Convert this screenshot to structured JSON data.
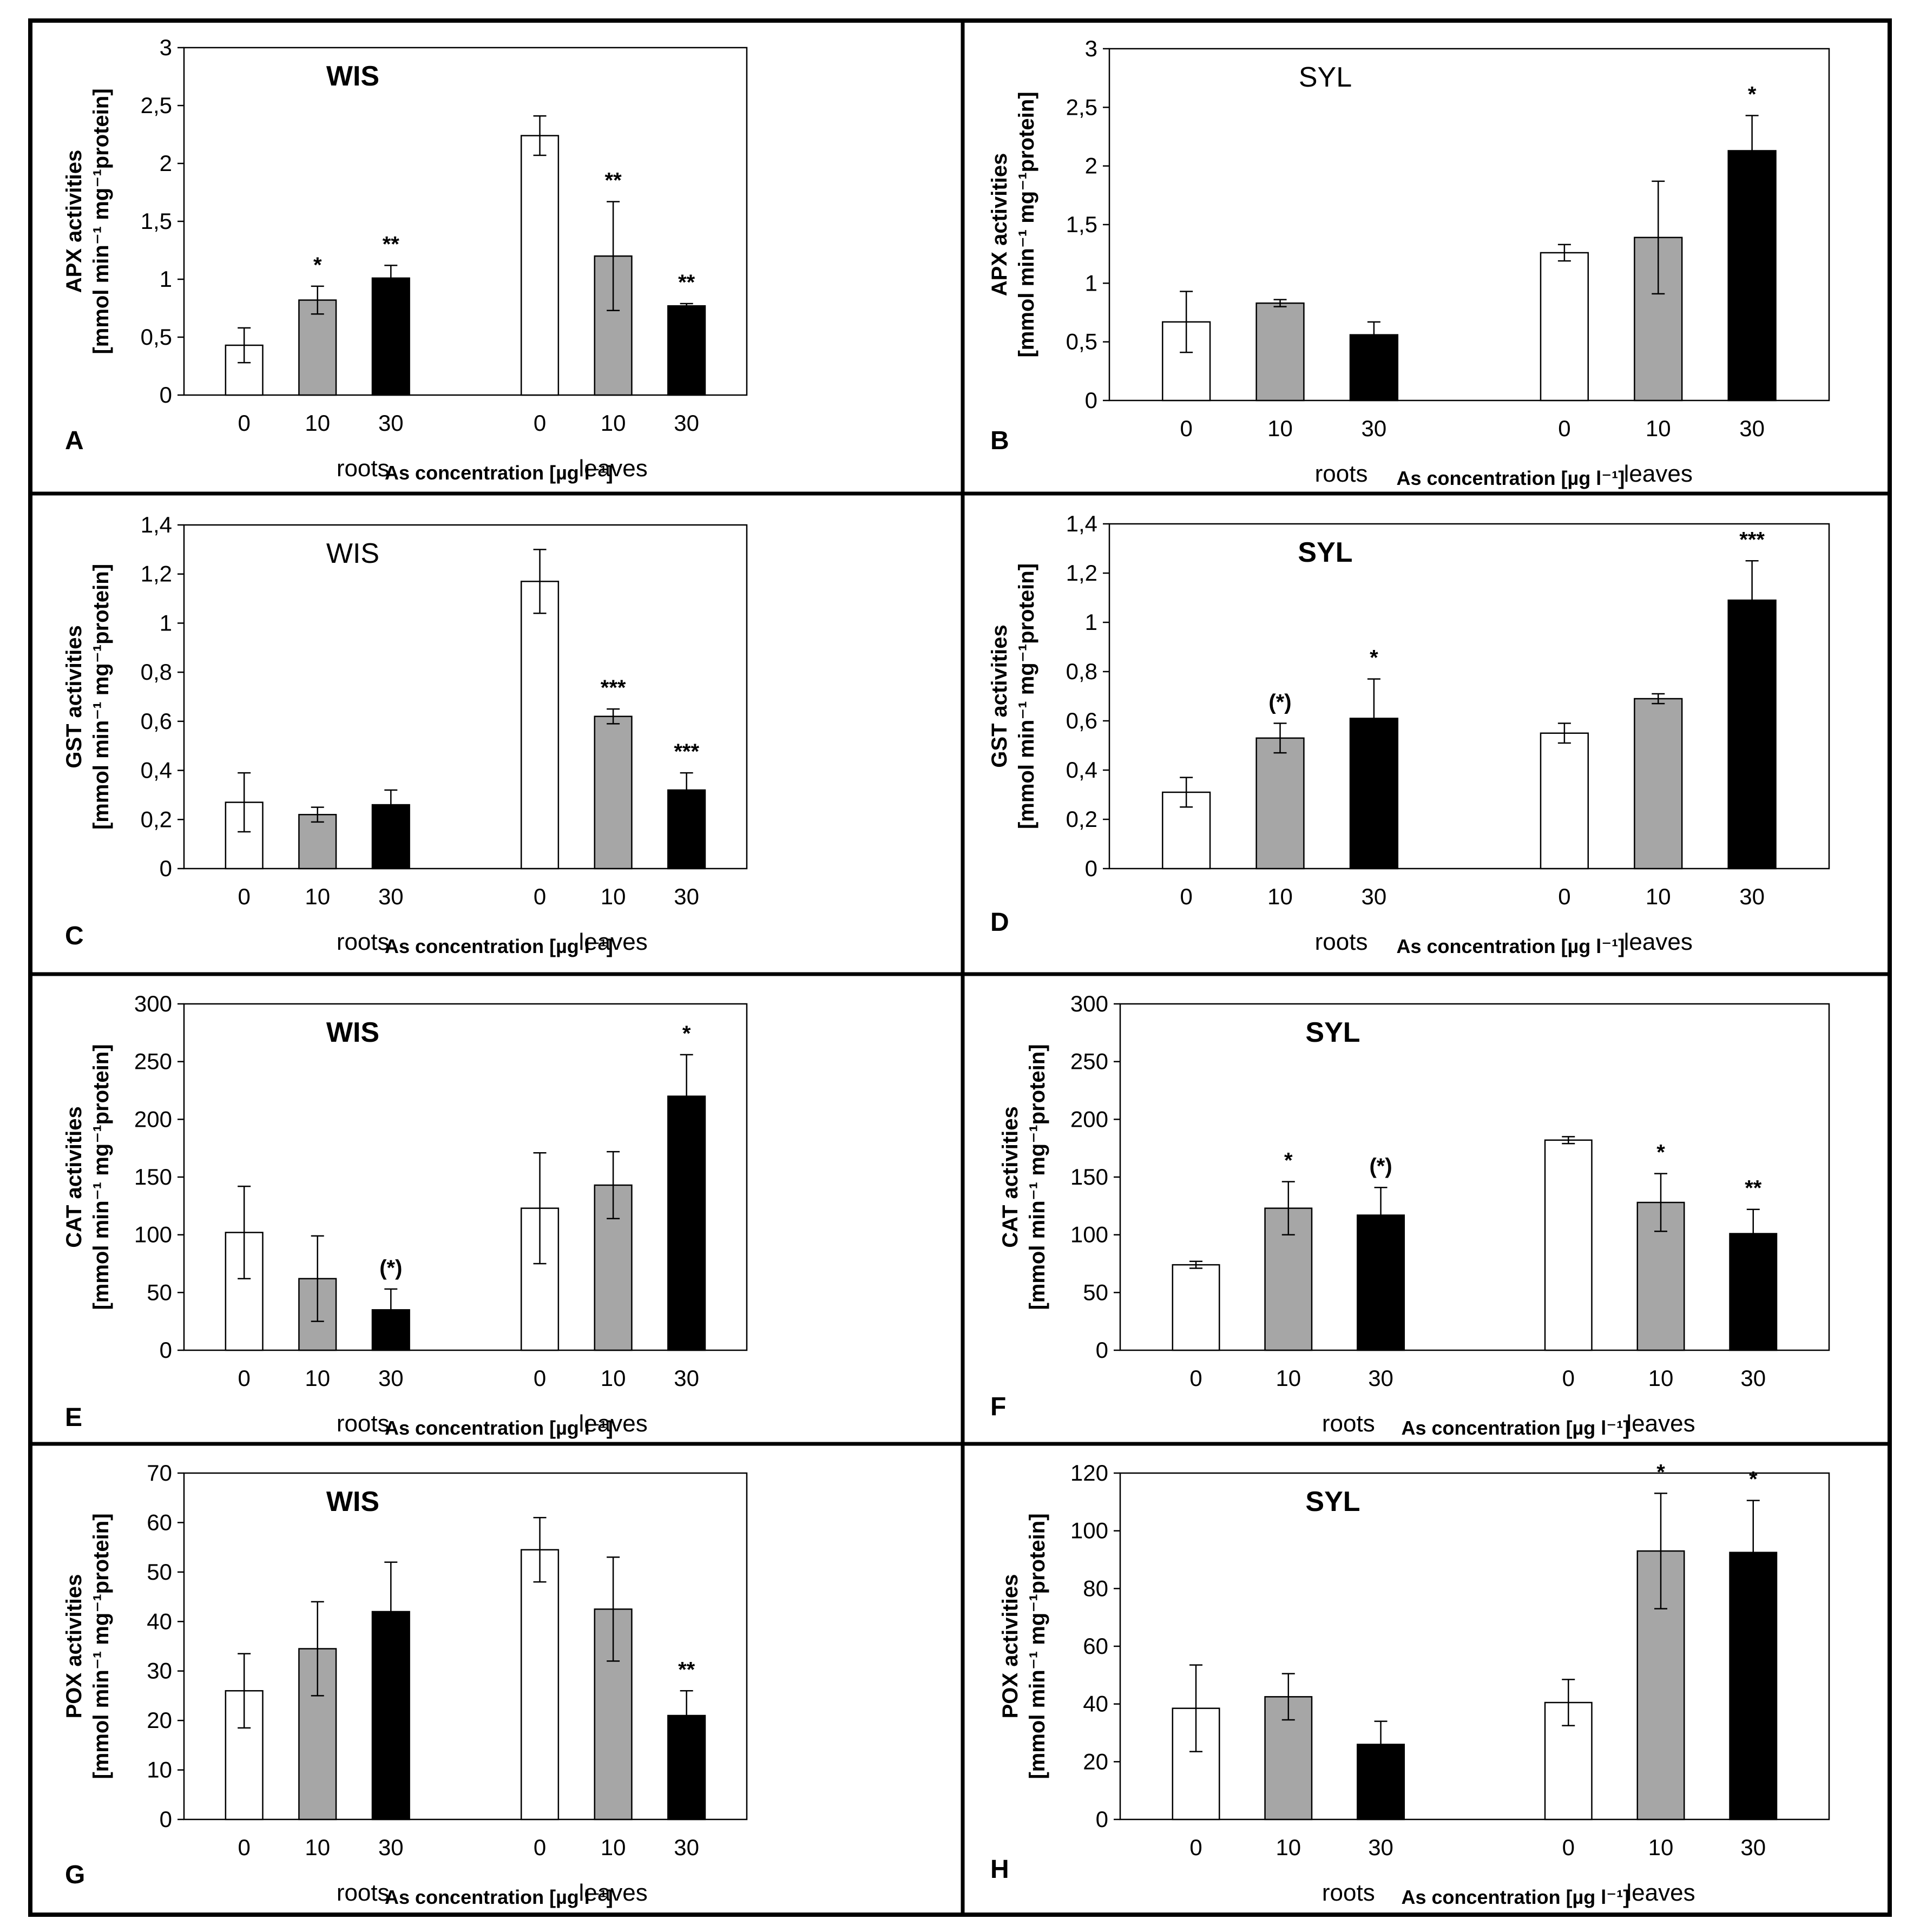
{
  "figure": {
    "type": "multi-panel bar chart",
    "color_scheme": {
      "dose_0": "#ffffff",
      "dose_10": "#a6a6a6",
      "dose_30": "#000000",
      "stroke": "#000000"
    }
  },
  "chart_data": [
    {
      "panel": "A",
      "type": "bar",
      "title": "WIS",
      "title_bold": true,
      "ylabel_line1": "APX activities",
      "ylabel_line2": "[mmol min⁻¹ mg⁻¹protein]",
      "xlabel": "As concentration [µg l⁻¹]",
      "group_labels": [
        "roots",
        "leaves"
      ],
      "categories": [
        "0",
        "10",
        "30",
        "0",
        "10",
        "30"
      ],
      "values": [
        0.43,
        0.82,
        1.01,
        2.24,
        1.2,
        0.77
      ],
      "errors": [
        0.15,
        0.12,
        0.11,
        0.17,
        0.47,
        0.02
      ],
      "annotations": [
        "",
        "*",
        "**",
        "",
        "**",
        "**"
      ],
      "ylim": [
        0,
        3
      ],
      "yticks": [
        "0",
        "0,5",
        "1",
        "1,5",
        "2",
        "2,5",
        "3"
      ]
    },
    {
      "panel": "B",
      "type": "bar",
      "title": "SYL",
      "title_bold": false,
      "ylabel_line1": "APX activities",
      "ylabel_line2": "[mmol min⁻¹ mg⁻¹protein]",
      "xlabel": "As concentration [µg l⁻¹]",
      "group_labels": [
        "roots",
        "leaves"
      ],
      "categories": [
        "0",
        "10",
        "30",
        "0",
        "10",
        "30"
      ],
      "values": [
        0.67,
        0.83,
        0.56,
        1.26,
        1.39,
        2.13
      ],
      "errors": [
        0.26,
        0.03,
        0.11,
        0.07,
        0.48,
        0.3
      ],
      "annotations": [
        "",
        "",
        "",
        "",
        "",
        "*"
      ],
      "ylim": [
        0,
        3
      ],
      "yticks": [
        "0",
        "0,5",
        "1",
        "1,5",
        "2",
        "2,5",
        "3"
      ]
    },
    {
      "panel": "C",
      "type": "bar",
      "title": "WIS",
      "title_bold": false,
      "ylabel_line1": "GST activities",
      "ylabel_line2": "[mmol min⁻¹ mg⁻¹protein]",
      "xlabel": "As concentration [µg l⁻¹]",
      "group_labels": [
        "roots",
        "leaves"
      ],
      "categories": [
        "0",
        "10",
        "30",
        "0",
        "10",
        "30"
      ],
      "values": [
        0.27,
        0.22,
        0.26,
        1.17,
        0.62,
        0.32
      ],
      "errors": [
        0.12,
        0.03,
        0.06,
        0.13,
        0.03,
        0.07
      ],
      "annotations": [
        "",
        "",
        "",
        "",
        "***",
        "***"
      ],
      "ylim": [
        0,
        1.4
      ],
      "yticks": [
        "0",
        "0,2",
        "0,4",
        "0,6",
        "0,8",
        "1",
        "1,2",
        "1,4"
      ]
    },
    {
      "panel": "D",
      "type": "bar",
      "title": "SYL",
      "title_bold": true,
      "ylabel_line1": "GST activities",
      "ylabel_line2": "[mmol min⁻¹ mg⁻¹protein]",
      "xlabel": "As concentration [µg l⁻¹]",
      "group_labels": [
        "roots",
        "leaves"
      ],
      "categories": [
        "0",
        "10",
        "30",
        "0",
        "10",
        "30"
      ],
      "values": [
        0.31,
        0.53,
        0.61,
        0.55,
        0.69,
        1.09
      ],
      "errors": [
        0.06,
        0.06,
        0.16,
        0.04,
        0.02,
        0.16
      ],
      "annotations": [
        "",
        "(*)",
        "*",
        "",
        "",
        "***"
      ],
      "ylim": [
        0,
        1.4
      ],
      "yticks": [
        "0",
        "0,2",
        "0,4",
        "0,6",
        "0,8",
        "1",
        "1,2",
        "1,4"
      ]
    },
    {
      "panel": "E",
      "type": "bar",
      "title": "WIS",
      "title_bold": true,
      "ylabel_line1": "CAT activities",
      "ylabel_line2": "[mmol min⁻¹ mg⁻¹protein]",
      "xlabel": "As concentration [µg l⁻¹]",
      "group_labels": [
        "roots",
        "leaves"
      ],
      "categories": [
        "0",
        "10",
        "30",
        "0",
        "10",
        "30"
      ],
      "values": [
        102,
        62,
        35,
        123,
        143,
        220
      ],
      "errors": [
        40,
        37,
        18,
        48,
        29,
        36
      ],
      "annotations": [
        "",
        "",
        "(*)",
        "",
        "",
        "*"
      ],
      "ylim": [
        0,
        300
      ],
      "yticks": [
        "0",
        "50",
        "100",
        "150",
        "200",
        "250",
        "300"
      ]
    },
    {
      "panel": "F",
      "type": "bar",
      "title": "SYL",
      "title_bold": true,
      "ylabel_line1": "CAT activities",
      "ylabel_line2": "[mmol min⁻¹ mg⁻¹protein]",
      "xlabel": "As concentration [µg l⁻¹]",
      "group_labels": [
        "roots",
        "leaves"
      ],
      "categories": [
        "0",
        "10",
        "30",
        "0",
        "10",
        "30"
      ],
      "values": [
        74,
        123,
        117,
        182,
        128,
        101
      ],
      "errors": [
        3,
        23,
        24,
        3,
        25,
        21
      ],
      "annotations": [
        "",
        "*",
        "(*)",
        "",
        "*",
        "**"
      ],
      "ylim": [
        0,
        300
      ],
      "yticks": [
        "0",
        "50",
        "100",
        "150",
        "200",
        "250",
        "300"
      ]
    },
    {
      "panel": "G",
      "type": "bar",
      "title": "WIS",
      "title_bold": true,
      "ylabel_line1": "POX activities",
      "ylabel_line2": "[mmol min⁻¹ mg⁻¹protein]",
      "xlabel": "As concentration [µg l⁻¹]",
      "group_labels": [
        "roots",
        "leaves"
      ],
      "categories": [
        "0",
        "10",
        "30",
        "0",
        "10",
        "30"
      ],
      "values": [
        26,
        34.5,
        42,
        54.5,
        42.5,
        21
      ],
      "errors": [
        7.5,
        9.5,
        10,
        6.5,
        10.5,
        5
      ],
      "annotations": [
        "",
        "",
        "",
        "",
        "",
        "**"
      ],
      "ylim": [
        0,
        70
      ],
      "yticks": [
        "0",
        "10",
        "20",
        "30",
        "40",
        "50",
        "60",
        "70"
      ]
    },
    {
      "panel": "H",
      "type": "bar",
      "title": "SYL",
      "title_bold": true,
      "ylabel_line1": "POX activities",
      "ylabel_line2": "[mmol min⁻¹ mg⁻¹protein]",
      "xlabel": "As concentration [µg l⁻¹]",
      "group_labels": [
        "roots",
        "leaves"
      ],
      "categories": [
        "0",
        "10",
        "30",
        "0",
        "10",
        "30"
      ],
      "values": [
        38.5,
        42.5,
        26,
        40.5,
        93,
        92.5
      ],
      "errors": [
        15,
        8,
        8,
        8,
        20,
        18
      ],
      "annotations": [
        "",
        "",
        "",
        "",
        "*",
        "*"
      ],
      "ylim": [
        0,
        120
      ],
      "yticks": [
        "0",
        "20",
        "40",
        "60",
        "80",
        "100",
        "120"
      ]
    }
  ]
}
